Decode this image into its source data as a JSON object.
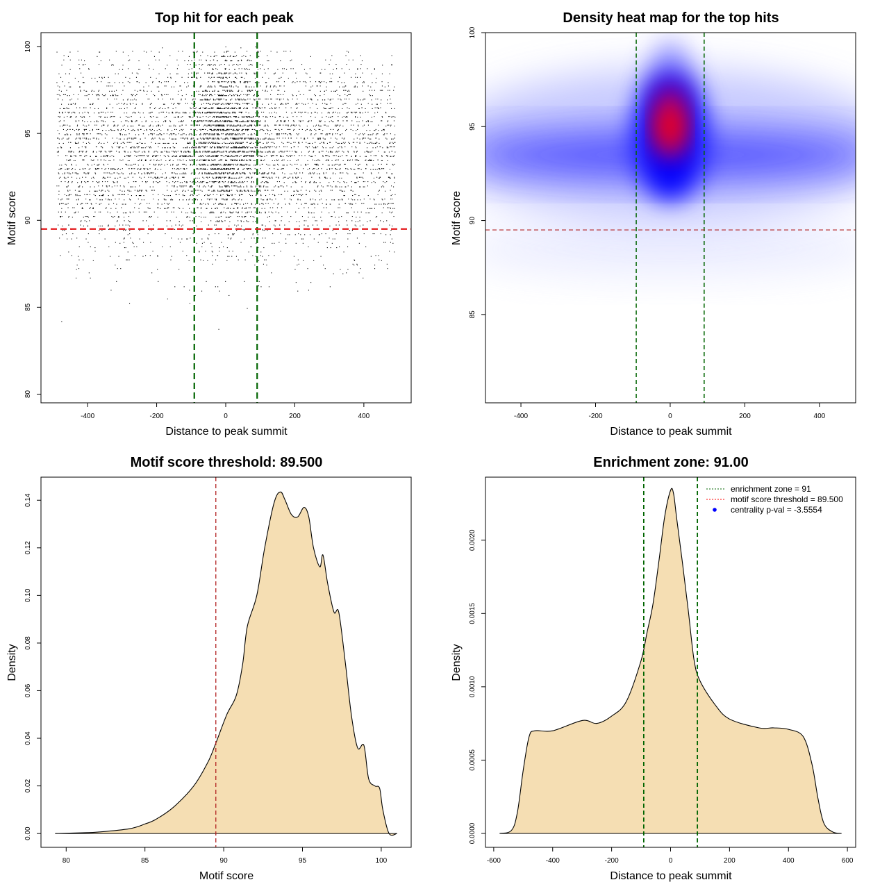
{
  "chart_data": [
    {
      "type": "scatter",
      "title": "Top hit for each peak",
      "xlabel": "Distance to peak summit",
      "ylabel": "Motif score",
      "xlim": [
        -535,
        537
      ],
      "ylim": [
        79.5,
        100.8
      ],
      "xticks": [
        -400,
        -200,
        0,
        200,
        400
      ],
      "yticks": [
        80,
        85,
        90,
        95,
        100
      ],
      "vlines": [
        -91,
        91
      ],
      "hline": 89.5,
      "colors": {
        "points": "#000000",
        "vlines": "#006400",
        "hline": "#e41a1c"
      },
      "grid": false
    },
    {
      "type": "heatmap",
      "title": "Density heat map for the top hits",
      "xlabel": "Distance to peak summit",
      "ylabel": "Motif score",
      "xlim": [
        -495,
        497
      ],
      "ylim": [
        80.3,
        100
      ],
      "xticks": [
        -400,
        -200,
        0,
        200,
        400
      ],
      "yticks": [
        85,
        90,
        95,
        100
      ],
      "vlines": [
        -91,
        91
      ],
      "hline": 89.5,
      "density_peak": {
        "x": 0,
        "y": 95
      },
      "colors": {
        "low": "#ffffff",
        "mid": "#0000ff",
        "high": "#ff0000",
        "vlines": "#006400",
        "hline": "#b22222"
      },
      "grid": false
    },
    {
      "type": "area",
      "title": "Motif score threshold: 89.500",
      "xlabel": "Motif score",
      "ylabel": "Density",
      "xlim": [
        78.4,
        101.9
      ],
      "ylim": [
        -0.0058,
        0.1497
      ],
      "xticks": [
        80,
        85,
        90,
        95,
        100
      ],
      "yticks": [
        0.0,
        0.02,
        0.04,
        0.06,
        0.08,
        0.1,
        0.12,
        0.14
      ],
      "ytick_labels": [
        "0.00",
        "0.02",
        "0.04",
        "0.06",
        "0.08",
        "0.10",
        "0.12",
        "0.14"
      ],
      "vlines": [
        89.5
      ],
      "x": [
        79.3,
        81,
        82,
        84,
        85,
        85.7,
        86.8,
        88.1,
        89,
        89.5,
        90.2,
        90.8,
        91.2,
        91.5,
        92.1,
        92.6,
        93.2,
        93.6,
        93.9,
        94.3,
        94.7,
        95.1,
        95.4,
        95.7,
        96.1,
        96.3,
        96.6,
        97,
        97.3,
        97.7,
        98.1,
        98.5,
        98.9,
        99.2,
        99.6,
        99.9,
        100.1,
        100.5,
        101
      ],
      "y": [
        0,
        0.0003,
        0.0006,
        0.002,
        0.004,
        0.006,
        0.011,
        0.02,
        0.03,
        0.038,
        0.05,
        0.058,
        0.071,
        0.087,
        0.1,
        0.12,
        0.139,
        0.1435,
        0.14,
        0.134,
        0.133,
        0.137,
        0.133,
        0.12,
        0.112,
        0.117,
        0.105,
        0.093,
        0.093,
        0.073,
        0.05,
        0.036,
        0.037,
        0.023,
        0.02,
        0.019,
        0.01,
        0,
        0
      ],
      "colors": {
        "fill": "#f5deb3",
        "line": "#000000",
        "vlines": "#b22222"
      },
      "grid": false
    },
    {
      "type": "area",
      "title": "Enrichment zone: 91.00",
      "xlabel": "Distance to peak summit",
      "ylabel": "Density",
      "xlim": [
        -628,
        628
      ],
      "ylim": [
        -9.5e-05,
        0.00243
      ],
      "xticks": [
        -600,
        -400,
        -200,
        0,
        200,
        400,
        600
      ],
      "yticks": [
        0,
        0.0005,
        0.001,
        0.0015,
        0.002
      ],
      "ytick_labels": [
        "0.0000",
        "0.0005",
        "0.0010",
        "0.0015",
        "0.0020"
      ],
      "vlines": [
        -91,
        91
      ],
      "x": [
        -580,
        -540,
        -520,
        -500,
        -480,
        -460,
        -400,
        -300,
        -250,
        -200,
        -150,
        -100,
        -80,
        -60,
        -40,
        -20,
        0,
        10,
        20,
        40,
        60,
        80,
        100,
        150,
        200,
        300,
        350,
        400,
        450,
        480,
        500,
        520,
        550,
        580
      ],
      "y": [
        0,
        2e-05,
        0.00014,
        0.00043,
        0.00066,
        0.0007,
        0.0007,
        0.00077,
        0.00075,
        0.0008,
        0.0009,
        0.00118,
        0.00137,
        0.00156,
        0.00185,
        0.00216,
        0.00234,
        0.00232,
        0.00216,
        0.00185,
        0.00152,
        0.00118,
        0.00104,
        0.00088,
        0.00078,
        0.00072,
        0.00072,
        0.00071,
        0.00066,
        0.00047,
        0.00024,
        7e-05,
        1e-05,
        0
      ],
      "legend": {
        "placement": "top-right",
        "items": [
          {
            "label": "enrichment zone = 91",
            "color": "#006400",
            "style": "dotted-line"
          },
          {
            "label": "motif score threshold = 89.500",
            "color": "#ff0000",
            "style": "dotted-line"
          },
          {
            "label": "centrality p-val = -3.5554",
            "color": "#0000ff",
            "style": "point"
          }
        ]
      },
      "colors": {
        "fill": "#f5deb3",
        "line": "#000000",
        "vlines": "#006400"
      },
      "grid": false
    }
  ]
}
